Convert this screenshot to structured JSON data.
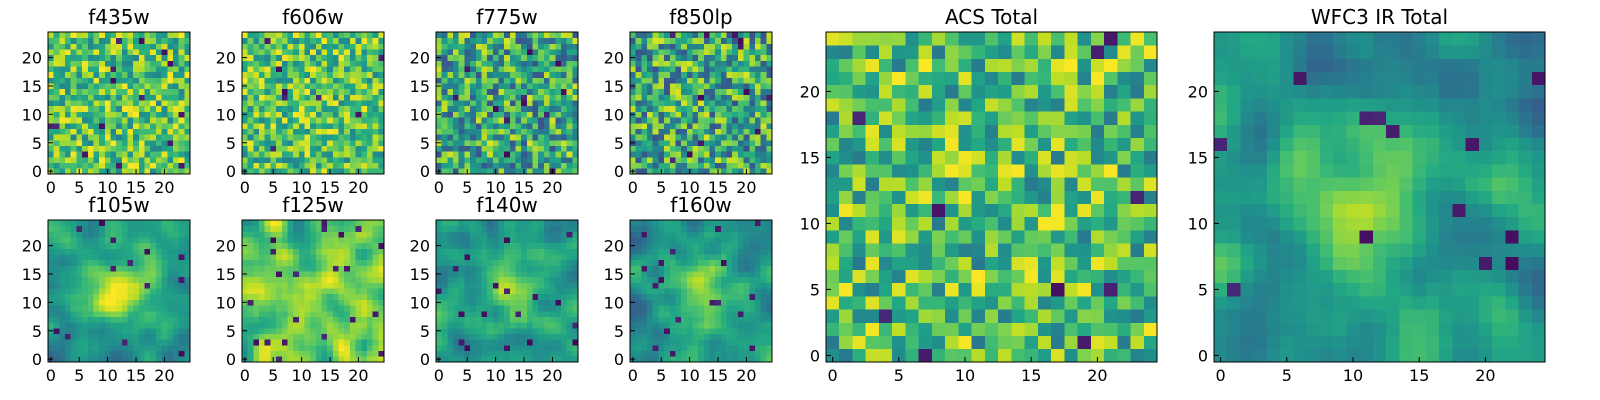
{
  "chart_data": {
    "type": "heatmap",
    "colormap": "viridis",
    "grid": false,
    "grid_size": [
      25,
      25
    ],
    "panels": [
      {
        "title": "f435w",
        "xticks": [
          "0",
          "5",
          "10",
          "15",
          "20"
        ],
        "yticks": [
          "0",
          "5",
          "10",
          "15",
          "20"
        ],
        "xlim": [
          -0.5,
          24.5
        ],
        "ylim": [
          -0.5,
          24.5
        ],
        "texture": "noise",
        "seed": 11
      },
      {
        "title": "f606w",
        "xticks": [
          "0",
          "5",
          "10",
          "15",
          "20"
        ],
        "yticks": [
          "0",
          "5",
          "10",
          "15",
          "20"
        ],
        "xlim": [
          -0.5,
          24.5
        ],
        "ylim": [
          -0.5,
          24.5
        ],
        "texture": "noise",
        "seed": 23
      },
      {
        "title": "f775w",
        "xticks": [
          "0",
          "5",
          "10",
          "15",
          "20"
        ],
        "yticks": [
          "0",
          "5",
          "10",
          "15",
          "20"
        ],
        "xlim": [
          -0.5,
          24.5
        ],
        "ylim": [
          -0.5,
          24.5
        ],
        "texture": "noise-dark",
        "seed": 37
      },
      {
        "title": "f850lp",
        "xticks": [
          "0",
          "5",
          "10",
          "15",
          "20"
        ],
        "yticks": [
          "0",
          "5",
          "10",
          "15",
          "20"
        ],
        "xlim": [
          -0.5,
          24.5
        ],
        "ylim": [
          -0.5,
          24.5
        ],
        "texture": "noise-dark",
        "seed": 41
      },
      {
        "title": "f105w",
        "xticks": [
          "0",
          "5",
          "10",
          "15",
          "20"
        ],
        "yticks": [
          "0",
          "5",
          "10",
          "15",
          "20"
        ],
        "xlim": [
          -0.5,
          24.5
        ],
        "ylim": [
          -0.5,
          24.5
        ],
        "texture": "smooth-blob",
        "seed": 53
      },
      {
        "title": "f125w",
        "xticks": [
          "0",
          "5",
          "10",
          "15",
          "20"
        ],
        "yticks": [
          "0",
          "5",
          "10",
          "15",
          "20"
        ],
        "xlim": [
          -0.5,
          24.5
        ],
        "ylim": [
          -0.5,
          24.5
        ],
        "texture": "smooth-bright",
        "seed": 67
      },
      {
        "title": "f140w",
        "xticks": [
          "0",
          "5",
          "10",
          "15",
          "20"
        ],
        "yticks": [
          "0",
          "5",
          "10",
          "15",
          "20"
        ],
        "xlim": [
          -0.5,
          24.5
        ],
        "ylim": [
          -0.5,
          24.5
        ],
        "texture": "smooth-blob",
        "seed": 79
      },
      {
        "title": "f160w",
        "xticks": [
          "0",
          "5",
          "10",
          "15",
          "20"
        ],
        "yticks": [
          "0",
          "5",
          "10",
          "15",
          "20"
        ],
        "xlim": [
          -0.5,
          24.5
        ],
        "ylim": [
          -0.5,
          24.5
        ],
        "texture": "smooth-blob",
        "seed": 83
      },
      {
        "title": "ACS Total",
        "xticks": [
          "0",
          "5",
          "10",
          "15",
          "20"
        ],
        "yticks": [
          "0",
          "5",
          "10",
          "15",
          "20"
        ],
        "xlim": [
          -0.5,
          24.5
        ],
        "ylim": [
          -0.5,
          24.5
        ],
        "texture": "noise-bright",
        "seed": 97
      },
      {
        "title": "WFC3 IR Total",
        "xticks": [
          "0",
          "5",
          "10",
          "15",
          "20"
        ],
        "yticks": [
          "0",
          "5",
          "10",
          "15",
          "20"
        ],
        "xlim": [
          -0.5,
          24.5
        ],
        "ylim": [
          -0.5,
          24.5
        ],
        "texture": "smooth-blob",
        "seed": 101
      }
    ]
  }
}
